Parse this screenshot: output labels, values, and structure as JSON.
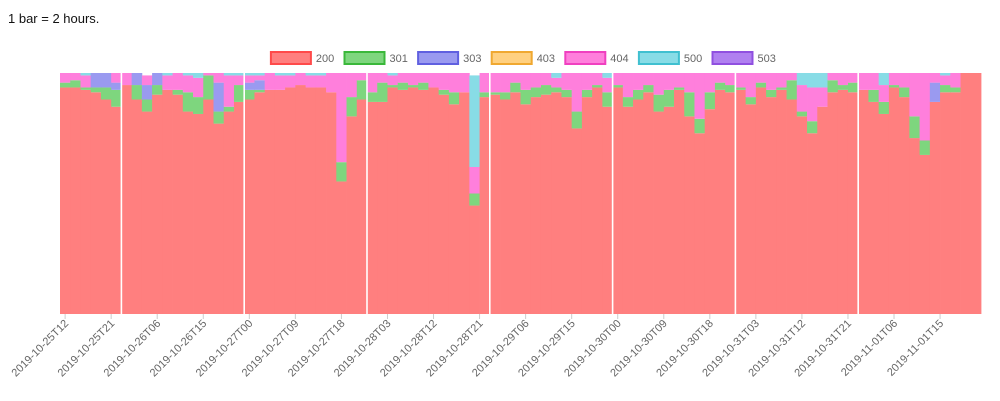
{
  "note": "1 bar = 2 hours.",
  "chart_data": {
    "type": "bar",
    "stacked": true,
    "title": "",
    "xlabel": "",
    "ylabel": "",
    "legend_position": "top-center",
    "grid": false,
    "y_axis_visible": false,
    "ylim": [
      0,
      100
    ],
    "x_tick_labels": [
      "2019-10-25T12",
      "2019-10-25T21",
      "2019-10-26T06",
      "2019-10-26T15",
      "2019-10-27T00",
      "2019-10-27T09",
      "2019-10-27T18",
      "2019-10-28T03",
      "2019-10-28T12",
      "2019-10-28T21",
      "2019-10-29T06",
      "2019-10-29T15",
      "2019-10-30T00",
      "2019-10-30T09",
      "2019-10-30T18",
      "2019-10-31T03",
      "2019-10-31T12",
      "2019-10-31T21",
      "2019-11-01T06",
      "2019-11-01T15"
    ],
    "day_separators": [
      "2019-10-26T00",
      "2019-10-27T00",
      "2019-10-28T00",
      "2019-10-29T00",
      "2019-10-30T00",
      "2019-10-31T00",
      "2019-11-01T00"
    ],
    "series": [
      {
        "name": "200",
        "color": "#ff7f7f",
        "border": "#ff4a4a",
        "values": []
      },
      {
        "name": "301",
        "color": "#7ed67e",
        "border": "#3ab83a",
        "values": []
      },
      {
        "name": "303",
        "color": "#9a9af0",
        "border": "#6060e0",
        "values": []
      },
      {
        "name": "403",
        "color": "#ffd080",
        "border": "#f0a830",
        "values": []
      },
      {
        "name": "404",
        "color": "#ff7fdc",
        "border": "#f040c0",
        "values": []
      },
      {
        "name": "500",
        "color": "#88dce6",
        "border": "#40c0d0",
        "values": []
      },
      {
        "name": "503",
        "color": "#b080f0",
        "border": "#9050e0",
        "values": []
      }
    ],
    "bars": [
      [
        94,
        2,
        0,
        0,
        4,
        0,
        0
      ],
      [
        94,
        3,
        0,
        0,
        3,
        0,
        0
      ],
      [
        93,
        1,
        0,
        0,
        5,
        1,
        0
      ],
      [
        92,
        2,
        6,
        0,
        0,
        0,
        0
      ],
      [
        89,
        5,
        6,
        0,
        0,
        0,
        0
      ],
      [
        86,
        7,
        3,
        0,
        4,
        0,
        0
      ],
      [
        95,
        0,
        0,
        0,
        5,
        0,
        0
      ],
      [
        89,
        6,
        5,
        0,
        0,
        0,
        0
      ],
      [
        84,
        5,
        6,
        0,
        4,
        0,
        0
      ],
      [
        91,
        4,
        5,
        0,
        0,
        0,
        0
      ],
      [
        93,
        0,
        0,
        0,
        6,
        1,
        0
      ],
      [
        91,
        2,
        0,
        0,
        7,
        0,
        0
      ],
      [
        84,
        8,
        0,
        0,
        7,
        1,
        0
      ],
      [
        83,
        7,
        0,
        0,
        8,
        2,
        0
      ],
      [
        89,
        10,
        0,
        0,
        1,
        0,
        0
      ],
      [
        79,
        5,
        12,
        0,
        4,
        0,
        0
      ],
      [
        84,
        2,
        0,
        0,
        13,
        1,
        0
      ],
      [
        88,
        7,
        0,
        0,
        4,
        1,
        0
      ],
      [
        89,
        4,
        3,
        0,
        3,
        1,
        0
      ],
      [
        92,
        1,
        4,
        0,
        2,
        1,
        0
      ],
      [
        93,
        0,
        0,
        0,
        7,
        0,
        0
      ],
      [
        93,
        0,
        0,
        0,
        6,
        1,
        0
      ],
      [
        94,
        0,
        0,
        0,
        5,
        1,
        0
      ],
      [
        95,
        0,
        0,
        0,
        5,
        0,
        0
      ],
      [
        94,
        0,
        0,
        0,
        5,
        1,
        0
      ],
      [
        94,
        0,
        0,
        0,
        5,
        1,
        0
      ],
      [
        92,
        0,
        0,
        0,
        8,
        0,
        0
      ],
      [
        55,
        8,
        0,
        0,
        37,
        0,
        0
      ],
      [
        82,
        8,
        0,
        0,
        10,
        0,
        0
      ],
      [
        89,
        8,
        0,
        0,
        3,
        0,
        0
      ],
      [
        88,
        4,
        0,
        0,
        8,
        0,
        0
      ],
      [
        88,
        8,
        0,
        0,
        4,
        0,
        0
      ],
      [
        94,
        1,
        0,
        0,
        4,
        1,
        0
      ],
      [
        93,
        3,
        0,
        0,
        4,
        0,
        0
      ],
      [
        94,
        1,
        0,
        0,
        5,
        0,
        0
      ],
      [
        93,
        3,
        0,
        0,
        4,
        0,
        0
      ],
      [
        94,
        0,
        0,
        0,
        6,
        0,
        0
      ],
      [
        91,
        2,
        0,
        0,
        7,
        0,
        0
      ],
      [
        87,
        5,
        0,
        0,
        8,
        0,
        0
      ],
      [
        92,
        0,
        0,
        0,
        8,
        0,
        0
      ],
      [
        45,
        5,
        0,
        0,
        11,
        38,
        0
      ],
      [
        90,
        2,
        0,
        0,
        8,
        0,
        0
      ],
      [
        91,
        1,
        0,
        0,
        8,
        0,
        0
      ],
      [
        89,
        3,
        0,
        0,
        8,
        0,
        0
      ],
      [
        92,
        4,
        0,
        0,
        4,
        0,
        0
      ],
      [
        87,
        6,
        0,
        0,
        7,
        0,
        0
      ],
      [
        90,
        4,
        0,
        0,
        6,
        0,
        0
      ],
      [
        91,
        4,
        0,
        0,
        5,
        0,
        0
      ],
      [
        92,
        2,
        0,
        0,
        4,
        2,
        0
      ],
      [
        90,
        3,
        0,
        0,
        7,
        0,
        0
      ],
      [
        77,
        7,
        0,
        0,
        16,
        0,
        0
      ],
      [
        90,
        3,
        0,
        0,
        7,
        0,
        0
      ],
      [
        94,
        1,
        0,
        0,
        5,
        0,
        0
      ],
      [
        86,
        6,
        0,
        0,
        6,
        2,
        0
      ],
      [
        94,
        1,
        0,
        0,
        5,
        0,
        0
      ],
      [
        86,
        4,
        0,
        0,
        10,
        0,
        0
      ],
      [
        89,
        4,
        0,
        0,
        7,
        0,
        0
      ],
      [
        92,
        3,
        0,
        0,
        5,
        0,
        0
      ],
      [
        84,
        7,
        0,
        0,
        9,
        0,
        0
      ],
      [
        86,
        7,
        0,
        0,
        7,
        0,
        0
      ],
      [
        93,
        1,
        0,
        0,
        6,
        0,
        0
      ],
      [
        82,
        10,
        0,
        0,
        8,
        0,
        0
      ],
      [
        75,
        6,
        0,
        0,
        19,
        0,
        0
      ],
      [
        85,
        7,
        0,
        0,
        8,
        0,
        0
      ],
      [
        93,
        3,
        0,
        0,
        4,
        0,
        0
      ],
      [
        92,
        3,
        0,
        0,
        5,
        0,
        0
      ],
      [
        93,
        1,
        0,
        0,
        6,
        0,
        0
      ],
      [
        87,
        3,
        0,
        0,
        10,
        0,
        0
      ],
      [
        94,
        2,
        0,
        0,
        4,
        0,
        0
      ],
      [
        90,
        3,
        0,
        0,
        7,
        0,
        0
      ],
      [
        93,
        1,
        0,
        0,
        6,
        0,
        0
      ],
      [
        89,
        8,
        0,
        0,
        3,
        0,
        0
      ],
      [
        82,
        2,
        0,
        0,
        11,
        5,
        0
      ],
      [
        75,
        5,
        0,
        0,
        14,
        6,
        0
      ],
      [
        86,
        0,
        0,
        0,
        8,
        6,
        0
      ],
      [
        92,
        5,
        0,
        0,
        3,
        0,
        0
      ],
      [
        93,
        2,
        0,
        0,
        5,
        0,
        0
      ],
      [
        92,
        4,
        0,
        0,
        4,
        0,
        0
      ],
      [
        93,
        0,
        0,
        0,
        7,
        0,
        0
      ],
      [
        88,
        5,
        0,
        0,
        7,
        0,
        0
      ],
      [
        83,
        5,
        0,
        0,
        7,
        5,
        0
      ],
      [
        94,
        1,
        0,
        0,
        5,
        0,
        0
      ],
      [
        90,
        4,
        0,
        0,
        6,
        0,
        0
      ],
      [
        73,
        9,
        0,
        0,
        18,
        0,
        0
      ],
      [
        66,
        6,
        0,
        0,
        28,
        0,
        0
      ],
      [
        88,
        0,
        8,
        0,
        4,
        0,
        0
      ],
      [
        92,
        3,
        0,
        0,
        4,
        1,
        0
      ],
      [
        92,
        2,
        0,
        0,
        6,
        0,
        0
      ],
      [
        100,
        0,
        0,
        0,
        0,
        0,
        0
      ],
      [
        100,
        0,
        0,
        0,
        0,
        0,
        0
      ]
    ]
  }
}
